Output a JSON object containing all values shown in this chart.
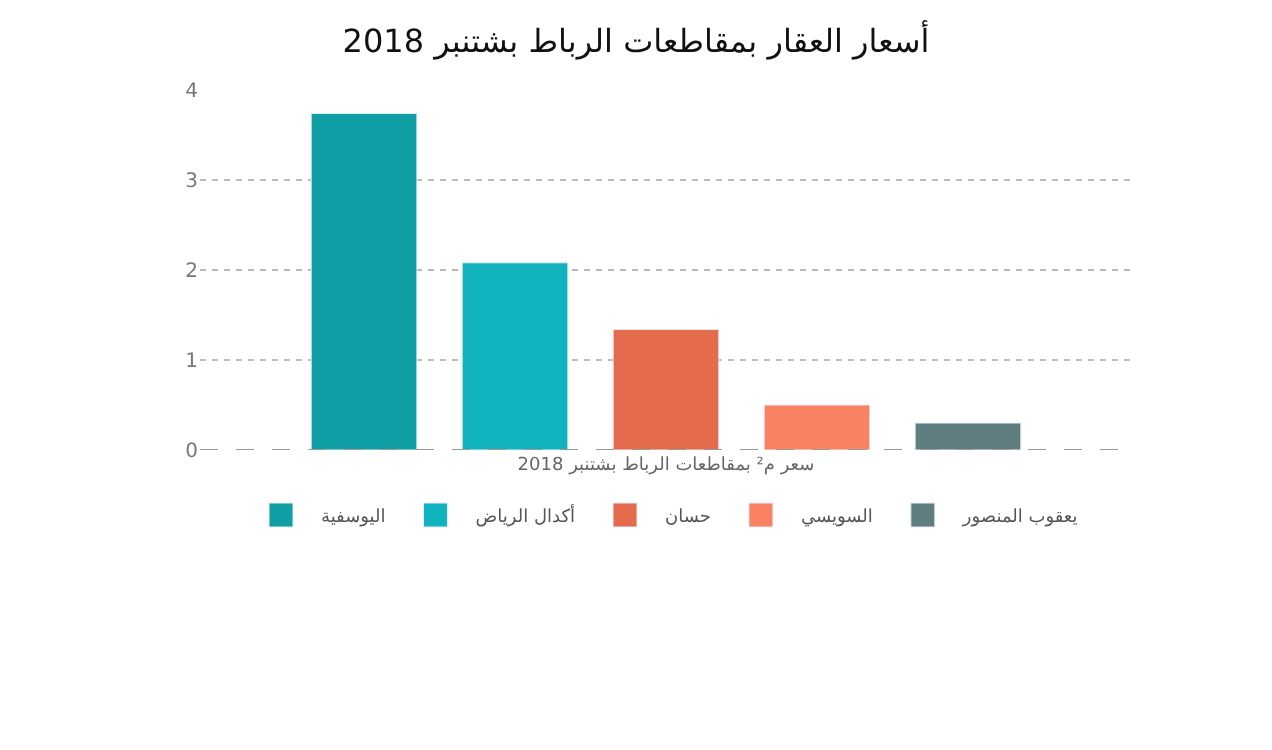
{
  "chart_data": {
    "type": "bar",
    "title": "أسعار العقار بمقاطعات الرباط بشتنبر 2018",
    "categories": [
      "سعر م² بمقاطعات الرباط بشتنبر 2018"
    ],
    "series": [
      {
        "name": "اليوسفية",
        "color": "#0f9ea3",
        "values": [
          3.74
        ]
      },
      {
        "name": "أكدال الرياض",
        "color": "#10b3bd",
        "values": [
          2.08
        ]
      },
      {
        "name": "حسان",
        "color": "#e56b4d",
        "values": [
          1.34
        ]
      },
      {
        "name": "السويسي",
        "color": "#f98262",
        "values": [
          0.5
        ]
      },
      {
        "name": "يعقوب المنصور",
        "color": "#607d80",
        "values": [
          0.3
        ]
      }
    ],
    "ylim": [
      0,
      4
    ],
    "yticks": [
      0,
      1,
      2,
      3,
      4
    ],
    "grid": "y",
    "legend": "bottom"
  }
}
